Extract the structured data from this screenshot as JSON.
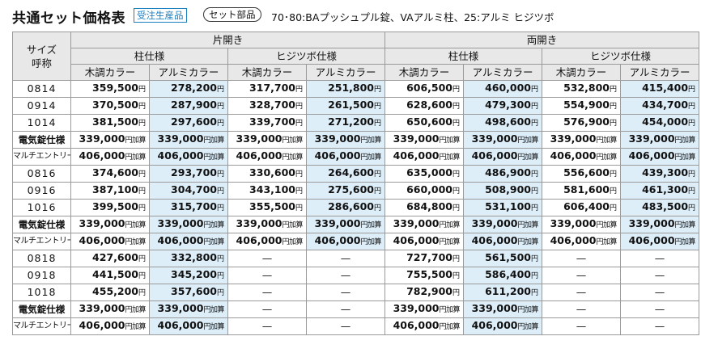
{
  "header": {
    "title": "共通セット価格表",
    "badge_build": "受注生産品",
    "badge_set": "セット部品",
    "subtitle": "70･80:BAプッシュプル錠、VAアルミ柱、25:アルミ ヒジツボ"
  },
  "table": {
    "corner_line1": "サイズ",
    "corner_line2": "呼称",
    "groups": [
      "片開き",
      "両開き"
    ],
    "subgroups": [
      "柱仕様",
      "ヒジツボ仕様",
      "柱仕様",
      "ヒジツボ仕様"
    ],
    "columns": [
      "木調カラー",
      "アルミカラー",
      "木調カラー",
      "アルミカラー",
      "木調カラー",
      "アルミカラー",
      "木調カラー",
      "アルミカラー"
    ],
    "unit": "円",
    "unit_add": "円加算",
    "dash": "—",
    "rows": [
      {
        "label": "0814",
        "type": "size",
        "values": [
          "359,500",
          "278,200",
          "317,700",
          "251,800",
          "606,500",
          "460,000",
          "532,800",
          "415,400"
        ]
      },
      {
        "label": "0914",
        "type": "size",
        "values": [
          "370,500",
          "287,900",
          "328,700",
          "261,500",
          "628,600",
          "479,300",
          "554,900",
          "434,700"
        ]
      },
      {
        "label": "1014",
        "type": "size",
        "values": [
          "381,500",
          "297,600",
          "339,700",
          "271,200",
          "650,600",
          "498,600",
          "576,900",
          "454,000"
        ]
      },
      {
        "label": "電気錠仕様",
        "type": "md",
        "values": [
          "339,000",
          "339,000",
          "339,000",
          "339,000",
          "339,000",
          "339,000",
          "339,000",
          "339,000"
        ]
      },
      {
        "label": "マルチエントリー錠仕様",
        "type": "sm",
        "values": [
          "406,000",
          "406,000",
          "406,000",
          "406,000",
          "406,000",
          "406,000",
          "406,000",
          "406,000"
        ]
      },
      {
        "label": "0816",
        "type": "size",
        "values": [
          "374,600",
          "293,700",
          "330,600",
          "264,600",
          "635,000",
          "486,900",
          "556,600",
          "439,300"
        ]
      },
      {
        "label": "0916",
        "type": "size",
        "values": [
          "387,100",
          "304,700",
          "343,100",
          "275,600",
          "660,000",
          "508,900",
          "581,600",
          "461,300"
        ]
      },
      {
        "label": "1016",
        "type": "size",
        "values": [
          "399,500",
          "315,700",
          "355,500",
          "286,600",
          "684,800",
          "531,100",
          "606,400",
          "483,500"
        ]
      },
      {
        "label": "電気錠仕様",
        "type": "md",
        "values": [
          "339,000",
          "339,000",
          "339,000",
          "339,000",
          "339,000",
          "339,000",
          "339,000",
          "339,000"
        ]
      },
      {
        "label": "マルチエントリー錠仕様",
        "type": "sm",
        "values": [
          "406,000",
          "406,000",
          "406,000",
          "406,000",
          "406,000",
          "406,000",
          "406,000",
          "406,000"
        ]
      },
      {
        "label": "0818",
        "type": "size",
        "values": [
          "427,600",
          "332,800",
          "—",
          "—",
          "727,700",
          "561,500",
          "—",
          "—"
        ]
      },
      {
        "label": "0918",
        "type": "size",
        "values": [
          "441,500",
          "345,200",
          "—",
          "—",
          "755,500",
          "586,400",
          "—",
          "—"
        ]
      },
      {
        "label": "1018",
        "type": "size",
        "values": [
          "455,200",
          "357,600",
          "—",
          "—",
          "782,900",
          "611,200",
          "—",
          "—"
        ]
      },
      {
        "label": "電気錠仕様",
        "type": "md",
        "values": [
          "339,000",
          "339,000",
          "—",
          "—",
          "339,000",
          "339,000",
          "—",
          "—"
        ]
      },
      {
        "label": "マルチエントリー錠仕様",
        "type": "sm",
        "values": [
          "406,000",
          "406,000",
          "—",
          "—",
          "406,000",
          "406,000",
          "—",
          "—"
        ]
      }
    ]
  }
}
